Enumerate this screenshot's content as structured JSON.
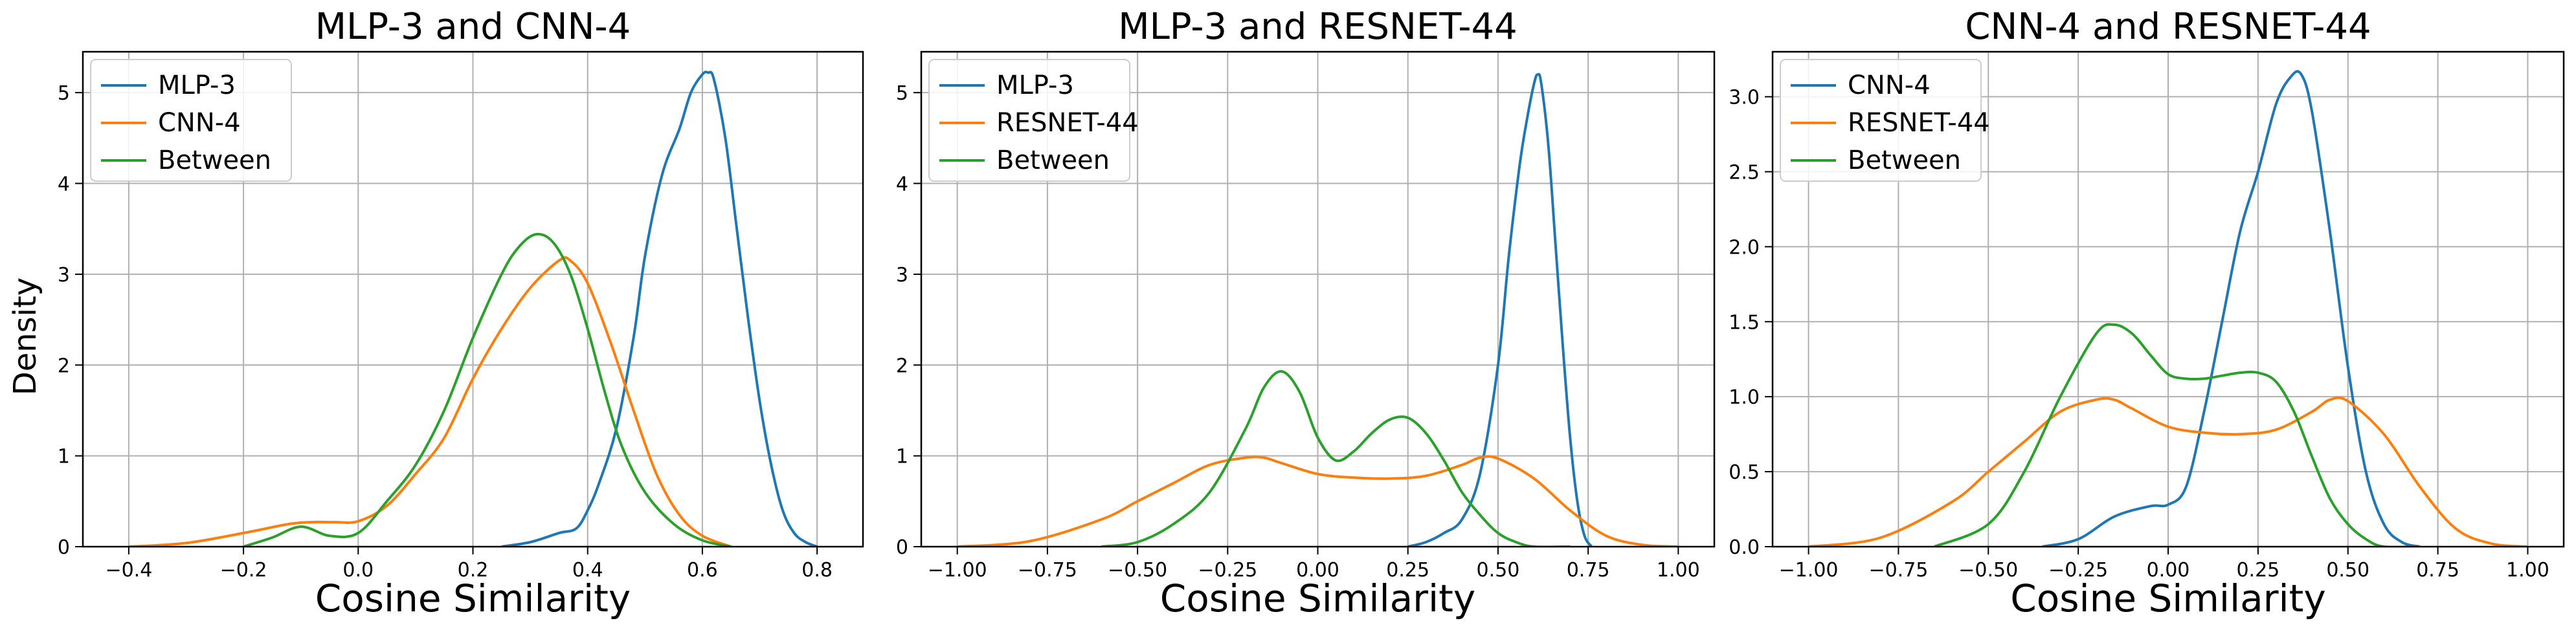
{
  "figure": {
    "ylabel": "Density"
  },
  "chart_data": [
    {
      "type": "line",
      "title": "MLP-3 and CNN-4",
      "xlabel": "Cosine Similarity",
      "ylabel": "Density",
      "xlim": [
        -0.48,
        0.88
      ],
      "ylim": [
        0,
        5.45
      ],
      "xticks": [
        -0.4,
        -0.2,
        0.0,
        0.2,
        0.4,
        0.6,
        0.8
      ],
      "xtick_labels": [
        "−0.4",
        "−0.2",
        "0.0",
        "0.2",
        "0.4",
        "0.6",
        "0.8"
      ],
      "yticks": [
        0,
        1,
        2,
        3,
        4,
        5
      ],
      "ytick_labels": [
        "0",
        "1",
        "2",
        "3",
        "4",
        "5"
      ],
      "grid": true,
      "legend": "top-left",
      "series": [
        {
          "name": "MLP-3",
          "color": "#1f77b4",
          "x": [
            0.25,
            0.3,
            0.35,
            0.38,
            0.4,
            0.42,
            0.45,
            0.48,
            0.5,
            0.53,
            0.56,
            0.58,
            0.6,
            0.61,
            0.62,
            0.64,
            0.66,
            0.68,
            0.7,
            0.72,
            0.74,
            0.76,
            0.78,
            0.8
          ],
          "y": [
            0.0,
            0.05,
            0.15,
            0.2,
            0.4,
            0.7,
            1.3,
            2.3,
            3.2,
            4.1,
            4.6,
            5.0,
            5.2,
            5.22,
            5.15,
            4.5,
            3.5,
            2.5,
            1.6,
            0.9,
            0.4,
            0.15,
            0.05,
            0.0
          ]
        },
        {
          "name": "CNN-4",
          "color": "#ff7f0e",
          "x": [
            -0.4,
            -0.3,
            -0.2,
            -0.12,
            -0.08,
            -0.04,
            0.0,
            0.05,
            0.1,
            0.15,
            0.2,
            0.25,
            0.3,
            0.35,
            0.37,
            0.4,
            0.44,
            0.48,
            0.52,
            0.56,
            0.6,
            0.65
          ],
          "y": [
            0.0,
            0.04,
            0.15,
            0.25,
            0.27,
            0.27,
            0.28,
            0.45,
            0.8,
            1.2,
            1.85,
            2.4,
            2.85,
            3.15,
            3.15,
            2.9,
            2.25,
            1.5,
            0.8,
            0.35,
            0.12,
            0.0
          ]
        },
        {
          "name": "Between",
          "color": "#2ca02c",
          "x": [
            -0.2,
            -0.15,
            -0.1,
            -0.05,
            0.0,
            0.05,
            0.1,
            0.15,
            0.2,
            0.25,
            0.28,
            0.31,
            0.34,
            0.37,
            0.4,
            0.43,
            0.46,
            0.5,
            0.55,
            0.6,
            0.65
          ],
          "y": [
            0.0,
            0.1,
            0.22,
            0.12,
            0.15,
            0.5,
            0.9,
            1.5,
            2.3,
            3.0,
            3.3,
            3.44,
            3.35,
            3.0,
            2.4,
            1.7,
            1.1,
            0.6,
            0.25,
            0.07,
            0.0
          ]
        }
      ]
    },
    {
      "type": "line",
      "title": "MLP-3 and RESNET-44",
      "xlabel": "Cosine Similarity",
      "ylabel": "",
      "xlim": [
        -1.1,
        1.1
      ],
      "ylim": [
        0,
        5.45
      ],
      "xticks": [
        -1.0,
        -0.75,
        -0.5,
        -0.25,
        0.0,
        0.25,
        0.5,
        0.75,
        1.0
      ],
      "xtick_labels": [
        "−1.00",
        "−0.75",
        "−0.50",
        "−0.25",
        "0.00",
        "0.25",
        "0.50",
        "0.75",
        "1.00"
      ],
      "yticks": [
        0,
        1,
        2,
        3,
        4,
        5
      ],
      "ytick_labels": [
        "0",
        "1",
        "2",
        "3",
        "4",
        "5"
      ],
      "grid": true,
      "legend": "top-left",
      "series": [
        {
          "name": "MLP-3",
          "color": "#1f77b4",
          "x": [
            0.25,
            0.3,
            0.35,
            0.4,
            0.45,
            0.5,
            0.53,
            0.56,
            0.58,
            0.6,
            0.61,
            0.62,
            0.64,
            0.66,
            0.68,
            0.7,
            0.72,
            0.74,
            0.76
          ],
          "y": [
            0.0,
            0.05,
            0.15,
            0.3,
            0.8,
            2.0,
            3.2,
            4.2,
            4.7,
            5.1,
            5.2,
            5.1,
            4.4,
            3.3,
            2.2,
            1.2,
            0.5,
            0.12,
            0.0
          ]
        },
        {
          "name": "RESNET-44",
          "color": "#ff7f0e",
          "x": [
            -1.0,
            -0.8,
            -0.6,
            -0.5,
            -0.4,
            -0.3,
            -0.2,
            -0.15,
            -0.1,
            0.0,
            0.1,
            0.2,
            0.3,
            0.4,
            0.45,
            0.5,
            0.6,
            0.7,
            0.8,
            0.9,
            1.0
          ],
          "y": [
            0.0,
            0.06,
            0.3,
            0.5,
            0.7,
            0.9,
            0.98,
            0.98,
            0.92,
            0.8,
            0.76,
            0.75,
            0.78,
            0.9,
            0.98,
            0.97,
            0.75,
            0.4,
            0.12,
            0.02,
            0.0
          ]
        },
        {
          "name": "Between",
          "color": "#2ca02c",
          "x": [
            -0.6,
            -0.5,
            -0.4,
            -0.3,
            -0.2,
            -0.15,
            -0.1,
            -0.05,
            0.0,
            0.05,
            0.1,
            0.15,
            0.2,
            0.25,
            0.3,
            0.35,
            0.4,
            0.45,
            0.5,
            0.55,
            0.6,
            0.7
          ],
          "y": [
            0.0,
            0.05,
            0.25,
            0.6,
            1.3,
            1.75,
            1.93,
            1.7,
            1.2,
            0.95,
            1.05,
            1.25,
            1.4,
            1.42,
            1.25,
            0.95,
            0.6,
            0.35,
            0.15,
            0.05,
            0.0,
            0.0
          ]
        }
      ]
    },
    {
      "type": "line",
      "title": "CNN-4 and RESNET-44",
      "xlabel": "Cosine Similarity",
      "ylabel": "",
      "xlim": [
        -1.1,
        1.1
      ],
      "ylim": [
        0,
        3.3
      ],
      "xticks": [
        -1.0,
        -0.75,
        -0.5,
        -0.25,
        0.0,
        0.25,
        0.5,
        0.75,
        1.0
      ],
      "xtick_labels": [
        "−1.00",
        "−0.75",
        "−0.50",
        "−0.25",
        "0.00",
        "0.25",
        "0.50",
        "0.75",
        "1.00"
      ],
      "yticks": [
        0,
        0.5,
        1.0,
        1.5,
        2.0,
        2.5,
        3.0
      ],
      "ytick_labels": [
        "0.0",
        "0.5",
        "1.0",
        "1.5",
        "2.0",
        "2.5",
        "3.0"
      ],
      "grid": true,
      "legend": "top-left",
      "series": [
        {
          "name": "CNN-4",
          "color": "#1f77b4",
          "x": [
            -0.35,
            -0.25,
            -0.15,
            -0.05,
            0.0,
            0.05,
            0.1,
            0.15,
            0.2,
            0.25,
            0.3,
            0.34,
            0.37,
            0.4,
            0.45,
            0.5,
            0.55,
            0.6,
            0.65,
            0.7
          ],
          "y": [
            0.0,
            0.05,
            0.2,
            0.27,
            0.28,
            0.4,
            0.9,
            1.5,
            2.1,
            2.5,
            2.95,
            3.13,
            3.15,
            2.9,
            2.1,
            1.2,
            0.5,
            0.15,
            0.03,
            0.0
          ]
        },
        {
          "name": "RESNET-44",
          "color": "#ff7f0e",
          "x": [
            -1.0,
            -0.8,
            -0.6,
            -0.5,
            -0.4,
            -0.3,
            -0.2,
            -0.15,
            -0.1,
            0.0,
            0.1,
            0.2,
            0.3,
            0.4,
            0.45,
            0.5,
            0.6,
            0.7,
            0.8,
            0.9,
            1.0
          ],
          "y": [
            0.0,
            0.06,
            0.3,
            0.5,
            0.7,
            0.9,
            0.98,
            0.98,
            0.92,
            0.8,
            0.76,
            0.75,
            0.78,
            0.9,
            0.98,
            0.97,
            0.75,
            0.4,
            0.12,
            0.02,
            0.0
          ]
        },
        {
          "name": "Between",
          "color": "#2ca02c",
          "x": [
            -0.65,
            -0.5,
            -0.4,
            -0.3,
            -0.2,
            -0.15,
            -0.1,
            -0.05,
            0.0,
            0.05,
            0.1,
            0.15,
            0.2,
            0.25,
            0.3,
            0.35,
            0.4,
            0.45,
            0.5,
            0.55,
            0.6,
            0.7
          ],
          "y": [
            0.0,
            0.15,
            0.5,
            1.0,
            1.42,
            1.48,
            1.42,
            1.28,
            1.15,
            1.12,
            1.12,
            1.14,
            1.16,
            1.16,
            1.1,
            0.9,
            0.6,
            0.32,
            0.15,
            0.05,
            0.0,
            0.0
          ]
        }
      ]
    }
  ]
}
